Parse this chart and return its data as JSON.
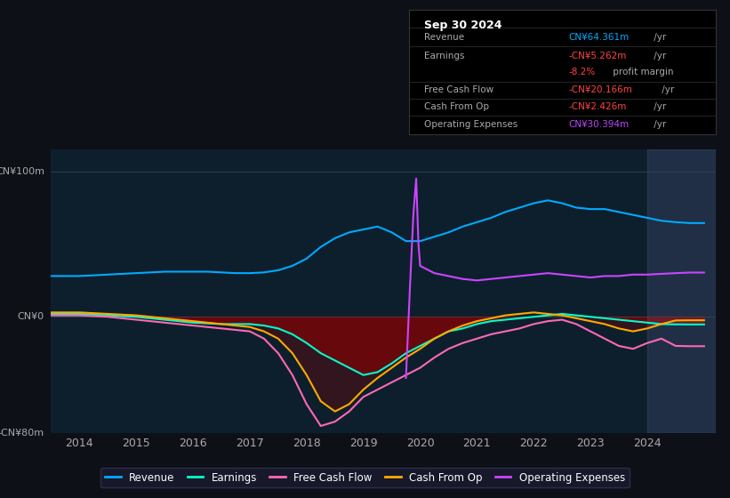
{
  "bg_color": "#0d1117",
  "plot_bg_color": "#0d1f2d",
  "title_box": {
    "date": "Sep 30 2024",
    "rows": [
      {
        "label": "Revenue",
        "value": "CN¥64.361m",
        "value_color": "#00aaff",
        "suffix": " /yr"
      },
      {
        "label": "Earnings",
        "value": "-CN¥5.262m",
        "value_color": "#ff4444",
        "suffix": " /yr"
      },
      {
        "label": "",
        "value": "-8.2%",
        "value_color": "#ff4444",
        "suffix": " profit margin",
        "suffix_color": "#aaaaaa"
      },
      {
        "label": "Free Cash Flow",
        "value": "-CN¥20.166m",
        "value_color": "#ff4444",
        "suffix": " /yr"
      },
      {
        "label": "Cash From Op",
        "value": "-CN¥2.426m",
        "value_color": "#ff4444",
        "suffix": " /yr"
      },
      {
        "label": "Operating Expenses",
        "value": "CN¥30.394m",
        "value_color": "#bb44ff",
        "suffix": " /yr"
      }
    ]
  },
  "ylabel_top": "CN¥100m",
  "ylabel_zero": "CN¥0",
  "ylabel_bottom": "-CN¥80m",
  "ylim": [
    -80,
    115
  ],
  "xlim": [
    2013.5,
    2025.2
  ],
  "xticks": [
    2014,
    2015,
    2016,
    2017,
    2018,
    2019,
    2020,
    2021,
    2022,
    2023,
    2024
  ],
  "years": [
    2013.5,
    2014.0,
    2014.25,
    2014.5,
    2014.75,
    2015.0,
    2015.25,
    2015.5,
    2015.75,
    2016.0,
    2016.25,
    2016.5,
    2016.75,
    2017.0,
    2017.25,
    2017.5,
    2017.75,
    2018.0,
    2018.25,
    2018.5,
    2018.75,
    2019.0,
    2019.25,
    2019.5,
    2019.75,
    2020.0,
    2020.25,
    2020.5,
    2020.75,
    2021.0,
    2021.25,
    2021.5,
    2021.75,
    2022.0,
    2022.25,
    2022.5,
    2022.75,
    2023.0,
    2023.25,
    2023.5,
    2023.75,
    2024.0,
    2024.25,
    2024.5,
    2024.75,
    2025.0
  ],
  "revenue": [
    28,
    28,
    28.5,
    29,
    29.5,
    30,
    30.5,
    31,
    31,
    31,
    31,
    30.5,
    30,
    30,
    30.5,
    32,
    35,
    40,
    48,
    54,
    58,
    60,
    62,
    58,
    52,
    52,
    55,
    58,
    62,
    65,
    68,
    72,
    75,
    78,
    80,
    78,
    75,
    74,
    74,
    72,
    70,
    68,
    66,
    65,
    64.4,
    64.4
  ],
  "earnings": [
    2,
    2,
    1.5,
    1,
    0.5,
    0,
    -1,
    -2,
    -3,
    -4,
    -4.5,
    -5,
    -5,
    -5,
    -6,
    -8,
    -12,
    -18,
    -25,
    -30,
    -35,
    -40,
    -38,
    -32,
    -25,
    -20,
    -15,
    -10,
    -8,
    -5,
    -3,
    -2,
    -1,
    0,
    1,
    2,
    1,
    0,
    -1,
    -2,
    -3,
    -4,
    -5,
    -5.2,
    -5.26,
    -5.26
  ],
  "free_cash_flow": [
    1,
    1,
    0.5,
    0,
    -1,
    -2,
    -3,
    -4,
    -5,
    -6,
    -7,
    -8,
    -9,
    -10,
    -15,
    -25,
    -40,
    -60,
    -75,
    -72,
    -65,
    -55,
    -50,
    -45,
    -40,
    -35,
    -28,
    -22,
    -18,
    -15,
    -12,
    -10,
    -8,
    -5,
    -3,
    -2,
    -5,
    -10,
    -15,
    -20,
    -22,
    -18,
    -15,
    -20,
    -20.2,
    -20.2
  ],
  "cash_from_op": [
    3,
    3,
    2.5,
    2,
    1.5,
    1,
    0,
    -1,
    -2,
    -3,
    -4,
    -5,
    -6,
    -7,
    -10,
    -15,
    -25,
    -40,
    -58,
    -65,
    -60,
    -50,
    -42,
    -35,
    -28,
    -22,
    -15,
    -10,
    -6,
    -3,
    -1,
    1,
    2,
    3,
    2,
    1,
    -1,
    -3,
    -5,
    -8,
    -10,
    -8,
    -5,
    -2.5,
    -2.4,
    -2.4
  ],
  "op_expenses": [
    null,
    null,
    null,
    null,
    null,
    null,
    null,
    null,
    null,
    null,
    null,
    null,
    null,
    null,
    null,
    null,
    null,
    null,
    null,
    null,
    null,
    null,
    null,
    null,
    null,
    35,
    30,
    28,
    26,
    25,
    26,
    27,
    28,
    29,
    30,
    29,
    28,
    27,
    28,
    28,
    29,
    29,
    29.5,
    30,
    30.4,
    30.4
  ],
  "colors": {
    "revenue": "#00aaff",
    "earnings": "#00ffcc",
    "free_cash_flow": "#ff69b4",
    "cash_from_op": "#ffaa00",
    "op_expenses": "#cc44ff"
  },
  "legend": [
    {
      "label": "Revenue",
      "color": "#00aaff"
    },
    {
      "label": "Earnings",
      "color": "#00ffcc"
    },
    {
      "label": "Free Cash Flow",
      "color": "#ff69b4"
    },
    {
      "label": "Cash From Op",
      "color": "#ffaa00"
    },
    {
      "label": "Operating Expenses",
      "color": "#cc44ff"
    }
  ]
}
